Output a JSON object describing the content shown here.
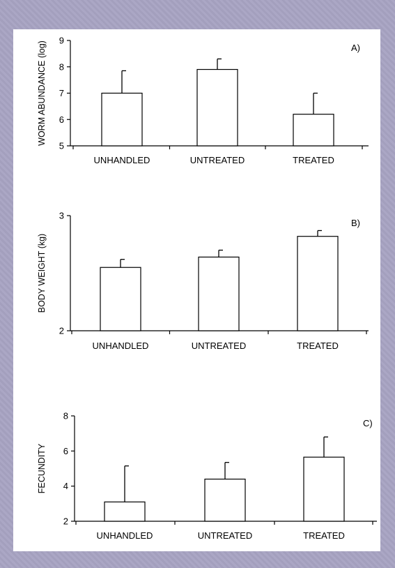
{
  "chart_data": [
    {
      "type": "bar",
      "panel_label": "A)",
      "ylabel": "WORM ABUNDANCE (log)",
      "xlabel": "",
      "categories": [
        "UNHANDLED",
        "UNTREATED",
        "TREATED"
      ],
      "values": [
        7.0,
        7.9,
        6.2
      ],
      "error_upper": [
        7.85,
        8.3,
        7.0
      ],
      "ylim": [
        5,
        9
      ],
      "yticks": [
        5,
        6,
        7,
        8,
        9
      ],
      "grid": false
    },
    {
      "type": "bar",
      "panel_label": "B)",
      "ylabel": "BODY WEIGHT (kg)",
      "xlabel": "",
      "categories": [
        "UNHANDLED",
        "UNTREATED",
        "TREATED"
      ],
      "values": [
        2.55,
        2.64,
        2.82
      ],
      "error_upper": [
        2.62,
        2.7,
        2.87
      ],
      "ylim": [
        2,
        3
      ],
      "yticks": [
        2,
        3
      ],
      "grid": false
    },
    {
      "type": "bar",
      "panel_label": "C)",
      "ylabel": "FECUNDITY",
      "xlabel": "",
      "categories": [
        "UNHANDLED",
        "UNTREATED",
        "TREATED"
      ],
      "values": [
        3.1,
        4.4,
        5.65
      ],
      "error_upper": [
        5.15,
        5.35,
        6.8
      ],
      "ylim": [
        2,
        8
      ],
      "yticks": [
        2,
        4,
        6,
        8
      ],
      "grid": false
    }
  ]
}
